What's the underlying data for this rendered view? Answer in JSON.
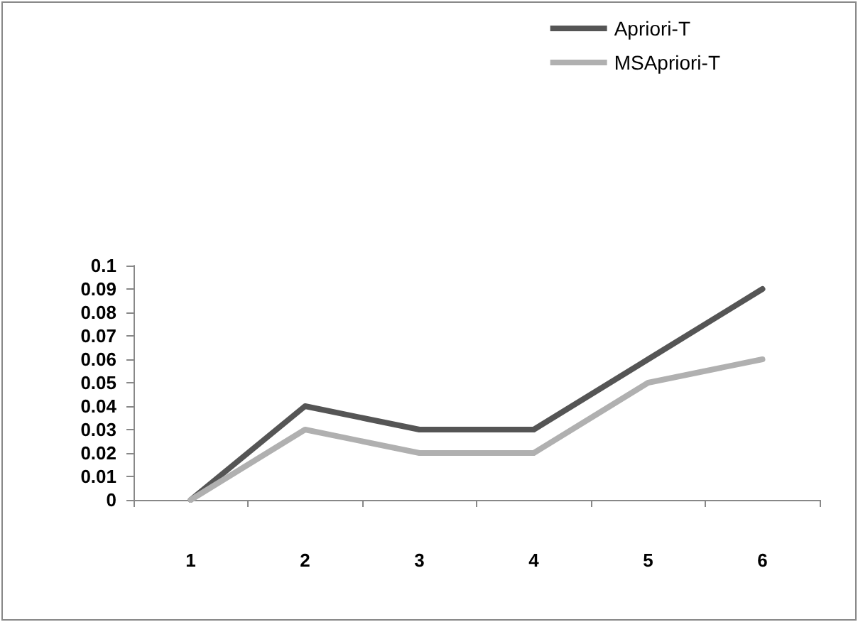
{
  "chart_data": {
    "type": "line",
    "categories": [
      "1",
      "2",
      "3",
      "4",
      "5",
      "6"
    ],
    "series": [
      {
        "name": "Apriori-T",
        "color": "#555555",
        "values": [
          0,
          0.04,
          0.03,
          0.03,
          0.06,
          0.09
        ]
      },
      {
        "name": "MSApriori-T",
        "color": "#b0b0b0",
        "values": [
          0,
          0.03,
          0.02,
          0.02,
          0.05,
          0.06
        ]
      }
    ],
    "ylim": [
      0,
      0.1
    ],
    "yticks": [
      0,
      0.01,
      0.02,
      0.03,
      0.04,
      0.05,
      0.06,
      0.07,
      0.08,
      0.09,
      0.1
    ],
    "grid": false,
    "legend": "top right",
    "marker": "none",
    "line_style": "solid"
  }
}
